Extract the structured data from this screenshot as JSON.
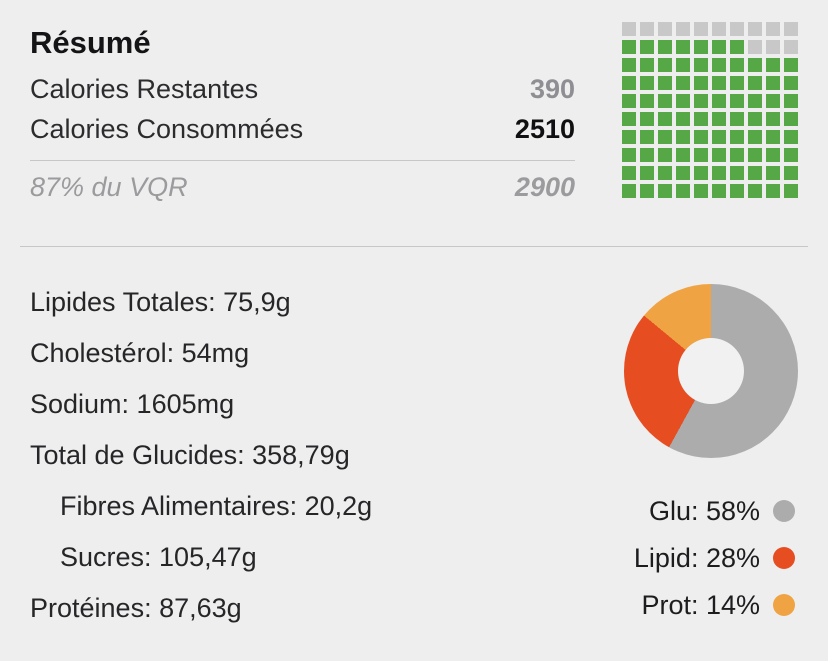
{
  "colors": {
    "background": "#eeeeef",
    "text_primary": "#262628",
    "text_strong": "#101012",
    "text_muted": "#8e8e93",
    "divider": "#c7c7c9",
    "waffle_green": "#55a845",
    "waffle_gray": "#c8c8c9",
    "donut_gray": "#acacac",
    "donut_red": "#e64e22",
    "donut_orange": "#f0a343"
  },
  "summary": {
    "title": "Résumé",
    "rows": [
      {
        "label": "Calories Restantes",
        "value": "390"
      },
      {
        "label": "Calories Consommées",
        "value": "2510"
      }
    ],
    "footnote": {
      "label": "87% du VQR",
      "value": "2900"
    }
  },
  "nutrients": [
    {
      "label": "Lipides Totales: 75,9g",
      "indent": false
    },
    {
      "label": "Cholestérol: 54mg",
      "indent": false
    },
    {
      "label": "Sodium: 1605mg",
      "indent": false
    },
    {
      "label": "Total de Glucides: 358,79g",
      "indent": false
    },
    {
      "label": "Fibres Alimentaires: 20,2g",
      "indent": true
    },
    {
      "label": "Sucres: 105,47g",
      "indent": true
    },
    {
      "label": "Protéines: 87,63g",
      "indent": false
    }
  ],
  "legend": [
    {
      "label": "Glu: 58%",
      "color": "#acacac"
    },
    {
      "label": "Lipid: 28%",
      "color": "#e64e22"
    },
    {
      "label": "Prot: 14%",
      "color": "#f0a343"
    }
  ],
  "chart_data": [
    {
      "type": "waffle",
      "title": "Calories consommées: 87% du VQR",
      "rows": 10,
      "cols": 10,
      "percent_filled": 87,
      "fill_color": "#55a845",
      "empty_color": "#c8c8c9",
      "layout_hint": "empty cells occupy top row and right end of second row; fill progresses bottom-up, left-to-right"
    },
    {
      "type": "pie",
      "subtype": "donut",
      "series": [
        {
          "name": "Glu",
          "value": 58,
          "color": "#acacac"
        },
        {
          "name": "Lipid",
          "value": 28,
          "color": "#e64e22"
        },
        {
          "name": "Prot",
          "value": 14,
          "color": "#f0a343"
        }
      ],
      "start_angle_deg": 0,
      "direction": "clockwise",
      "legend_position": "bottom-right"
    }
  ]
}
